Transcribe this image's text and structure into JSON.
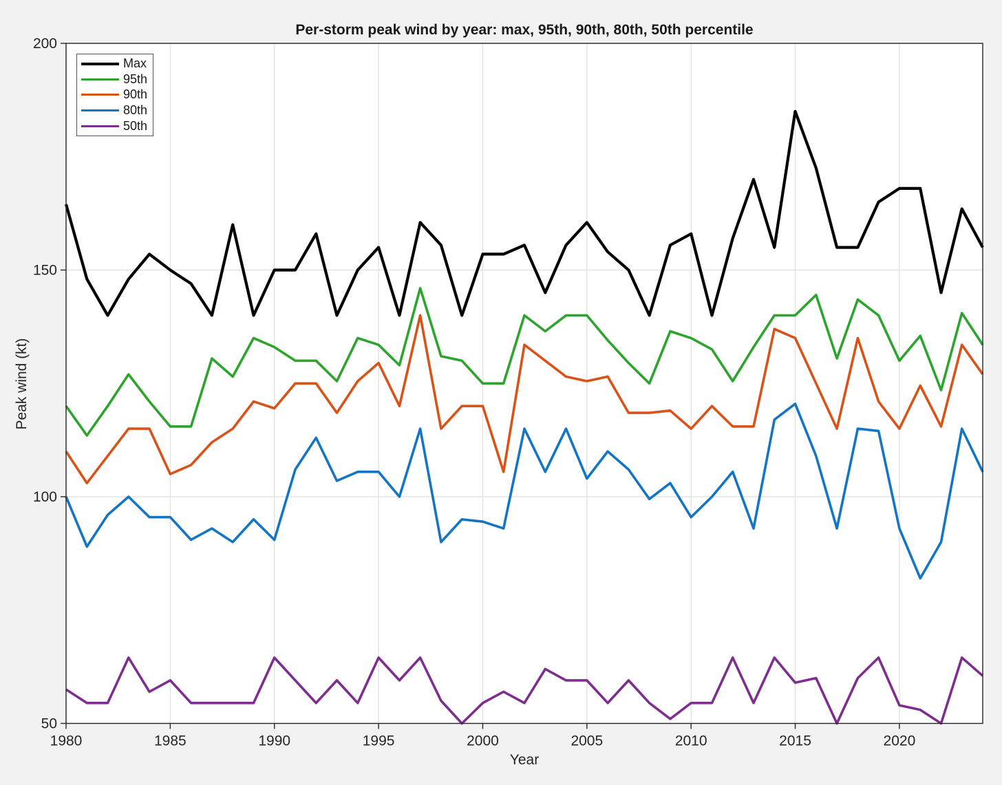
{
  "figure": {
    "title": "Per-storm peak wind by year: max, 95th, 90th, 80th, 50th percentile",
    "xlabel": "Year",
    "ylabel": "Peak wind (kt)",
    "background_color": "#f2f2f2",
    "plot_background_color": "#ffffff",
    "grid_color": "#e3e3e3",
    "axis_color": "#262626",
    "text_color": "#262626"
  },
  "legend": {
    "position": "top-left",
    "entries": [
      "Max",
      "95th",
      "90th",
      "80th",
      "50th"
    ]
  },
  "chart_data": {
    "type": "line",
    "title": "Per-storm peak wind by year: max, 95th, 90th, 80th, 50th percentile",
    "xlabel": "Year",
    "ylabel": "Peak wind (kt)",
    "xlim": [
      1980,
      2024
    ],
    "ylim": [
      50,
      200
    ],
    "xticks": [
      1980,
      1985,
      1990,
      1995,
      2000,
      2005,
      2010,
      2015,
      2020
    ],
    "yticks": [
      50,
      100,
      150,
      200
    ],
    "grid": true,
    "legend_position": "top-left",
    "x": [
      1980,
      1981,
      1982,
      1983,
      1984,
      1985,
      1986,
      1987,
      1988,
      1989,
      1990,
      1991,
      1992,
      1993,
      1994,
      1995,
      1996,
      1997,
      1998,
      1999,
      2000,
      2001,
      2002,
      2003,
      2004,
      2005,
      2006,
      2007,
      2008,
      2009,
      2010,
      2011,
      2012,
      2013,
      2014,
      2015,
      2016,
      2017,
      2018,
      2019,
      2020,
      2021,
      2022,
      2023,
      2024
    ],
    "series": [
      {
        "name": "Max",
        "color": "#000000",
        "line_width": 4.2,
        "values": [
          164.5,
          148,
          140,
          148,
          153.5,
          150,
          147,
          140,
          160,
          140,
          150,
          150,
          158,
          140,
          150,
          155,
          140,
          160.5,
          155.5,
          140,
          153.5,
          153.5,
          155.5,
          145,
          155.5,
          160.5,
          154,
          150,
          140,
          155.5,
          158,
          140,
          157,
          170,
          155,
          185,
          172.5,
          155,
          155,
          165,
          168,
          168,
          145,
          163.5,
          155
        ]
      },
      {
        "name": "95th",
        "color": "#2da42d",
        "line_width": 3.6,
        "values": [
          120,
          113.5,
          120,
          127,
          121,
          115.5,
          115.5,
          130.5,
          126.5,
          135,
          133,
          130,
          130,
          125.5,
          135,
          133.5,
          129,
          146,
          131,
          130,
          125,
          125,
          140,
          136.5,
          140,
          140,
          134.5,
          129.5,
          125,
          136.5,
          135,
          132.5,
          125.5,
          133,
          140,
          140,
          144.5,
          130.5,
          143.5,
          140,
          130,
          135.5,
          123.5,
          140.5,
          133.5
        ]
      },
      {
        "name": "90th",
        "color": "#d95319",
        "line_width": 3.6,
        "values": [
          110,
          103,
          109,
          115,
          115,
          105,
          107,
          112,
          115,
          121,
          119.5,
          125,
          125,
          118.5,
          125.5,
          129.5,
          120,
          140,
          115,
          120,
          120,
          105.5,
          133.5,
          130,
          126.5,
          125.5,
          126.5,
          118.5,
          118.5,
          119,
          115,
          120,
          115.5,
          115.5,
          137,
          135,
          125,
          115,
          135,
          121,
          115,
          124.5,
          115.5,
          133.5,
          127
        ]
      },
      {
        "name": "80th",
        "color": "#1575c5",
        "line_width": 3.6,
        "values": [
          100,
          89,
          96,
          100,
          95.5,
          95.5,
          90.5,
          93,
          90,
          95,
          90.5,
          106,
          113,
          103.5,
          105.5,
          105.5,
          100,
          115,
          90,
          95,
          94.5,
          93,
          115,
          105.5,
          115,
          104,
          110,
          106,
          99.5,
          103,
          95.5,
          100,
          105.5,
          93,
          117,
          120.5,
          109,
          93,
          115,
          114.5,
          93,
          82,
          90,
          115,
          105.5
        ]
      },
      {
        "name": "50th",
        "color": "#7d2e8e",
        "line_width": 3.6,
        "values": [
          57.5,
          54.5,
          54.5,
          64.5,
          57,
          59.5,
          54.5,
          54.5,
          54.5,
          54.5,
          64.5,
          59.5,
          54.5,
          59.5,
          54.5,
          64.5,
          59.5,
          64.5,
          55,
          50,
          54.5,
          57,
          54.5,
          62,
          59.5,
          59.5,
          54.5,
          59.5,
          54.5,
          51,
          54.5,
          54.5,
          64.5,
          54.5,
          64.5,
          59,
          60,
          50,
          60,
          64.5,
          54,
          53,
          50,
          64.5,
          60.5
        ]
      }
    ]
  }
}
